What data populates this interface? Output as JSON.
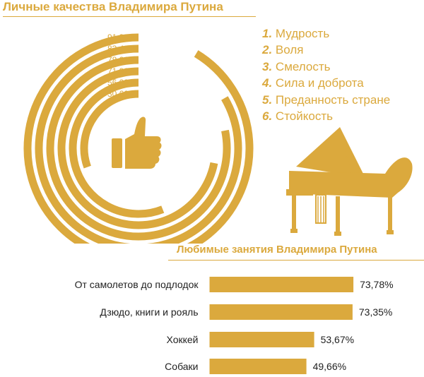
{
  "colors": {
    "accent": "#dba93d",
    "text": "#222222",
    "white": "#ffffff"
  },
  "icons": {
    "thumb": "thumbs-up-icon",
    "piano": "grand-piano-icon"
  },
  "chart_data": [
    {
      "type": "radial-bar",
      "title": "Личные качества Владимира Путина",
      "categories": [
        "Мудрость",
        "Воля",
        "Смелость",
        "Сила и доброта",
        "Преданность стране",
        "Стойкость"
      ],
      "numbers": [
        "1.",
        "2.",
        "3.",
        "4.",
        "5.",
        "6."
      ],
      "values": [
        91.3,
        83.4,
        78.21,
        71.92,
        56.0,
        30.62
      ],
      "value_labels": [
        "91,30%",
        "83,40%",
        "78,21%",
        "71,92%",
        "56,00%",
        "30,62%"
      ],
      "unit": "%",
      "range": [
        0,
        100
      ],
      "legend": "right",
      "grid": false
    },
    {
      "type": "bar",
      "orientation": "horizontal",
      "title": "Любимые занятия Владимира Путина",
      "categories": [
        "От самолетов до подлодок",
        "Дзюдо, книги и рояль",
        "Хоккей",
        "Собаки"
      ],
      "values": [
        73.78,
        73.35,
        53.67,
        49.66
      ],
      "value_labels": [
        "73,78%",
        "73,35%",
        "53,67%",
        "49,66%"
      ],
      "unit": "%",
      "range": [
        0,
        100
      ],
      "grid": false
    }
  ]
}
